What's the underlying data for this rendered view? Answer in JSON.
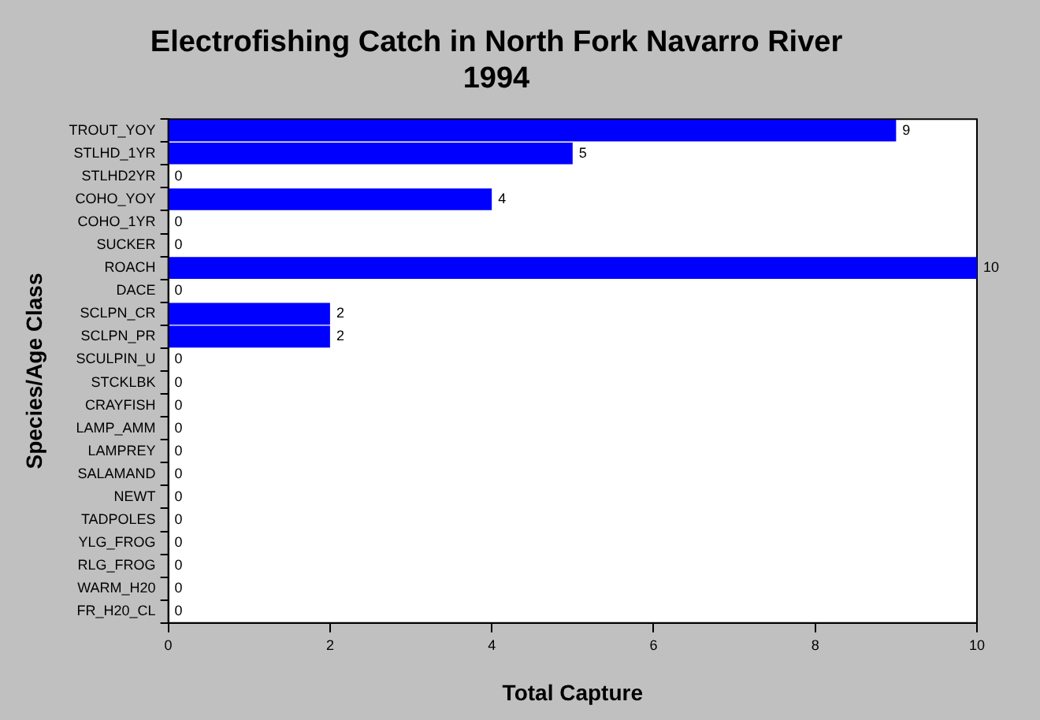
{
  "chart_data": {
    "type": "bar",
    "orientation": "horizontal",
    "title": "Electrofishing Catch in North Fork Navarro River",
    "subtitle": "1994",
    "xlabel": "Total Capture",
    "ylabel": "Species/Age Class",
    "categories": [
      "TROUT_YOY",
      "STLHD_1YR",
      "STLHD2YR",
      "COHO_YOY",
      "COHO_1YR",
      "SUCKER",
      "ROACH",
      "DACE",
      "SCLPN_CR",
      "SCLPN_PR",
      "SCULPIN_U",
      "STCKLBK",
      "CRAYFISH",
      "LAMP_AMM",
      "LAMPREY",
      "SALAMAND",
      "NEWT",
      "TADPOLES",
      "YLG_FROG",
      "RLG_FROG",
      "WARM_H20",
      "FR_H20_CL"
    ],
    "values": [
      9,
      5,
      0,
      4,
      0,
      0,
      10,
      0,
      2,
      2,
      0,
      0,
      0,
      0,
      0,
      0,
      0,
      0,
      0,
      0,
      0,
      0
    ],
    "color": "#0000ff",
    "xlim": [
      0,
      10
    ],
    "xticks": [
      0,
      2,
      4,
      6,
      8,
      10
    ],
    "grid": false,
    "legend": false,
    "data_labels": true
  }
}
